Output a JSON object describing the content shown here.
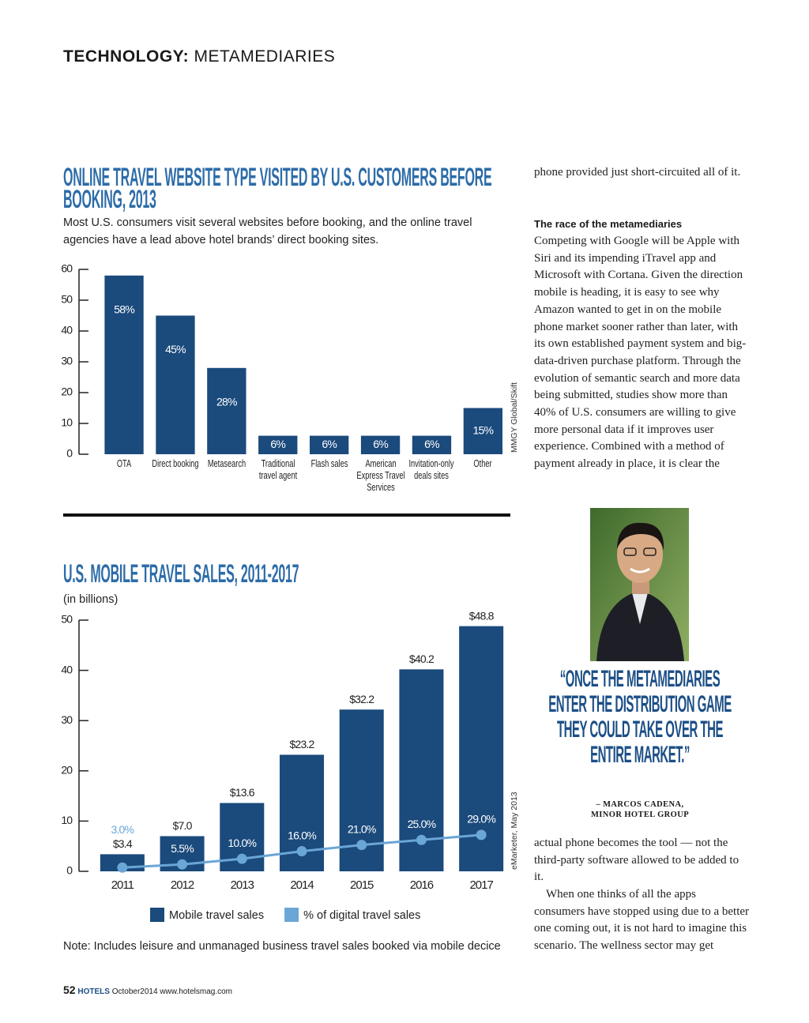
{
  "header": {
    "section": "TECHNOLOGY:",
    "topic": "METAMEDIARIES"
  },
  "chart_data": [
    {
      "type": "bar",
      "title": "ONLINE TRAVEL WEBSITE TYPE VISITED BY U.S. CUSTOMERS BEFORE BOOKING, 2013",
      "subtitle": "Most U.S. consumers visit several websites before booking, and the online travel agencies have a lead above hotel brands’ direct booking sites.",
      "source": "MMGY Global/Skift",
      "categories": [
        "OTA",
        "Direct booking",
        "Metasearch",
        "Traditional travel agent",
        "Flash sales",
        "American Express Travel Services",
        "Invitation-only deals sites",
        "Other"
      ],
      "values": [
        58,
        45,
        28,
        6,
        6,
        6,
        6,
        15
      ],
      "value_labels": [
        "58%",
        "45%",
        "28%",
        "6%",
        "6%",
        "6%",
        "6%",
        "15%"
      ],
      "color": "#1b4a7c",
      "ylim": [
        0,
        60
      ],
      "yticks": [
        0,
        10,
        20,
        30,
        40,
        50,
        60
      ]
    },
    {
      "type": "combo",
      "title": "U.S. MOBILE TRAVEL SALES, 2011-2017",
      "subtitle": "(in billions)",
      "note": "Note: Includes leisure and unmanaged business travel sales booked via mobile decice",
      "source": "eMarketer, May 2013",
      "categories": [
        "2011",
        "2012",
        "2013",
        "2014",
        "2015",
        "2016",
        "2017"
      ],
      "series": [
        {
          "name": "Mobile travel sales",
          "type": "bar",
          "color": "#1b4a7c",
          "values": [
            3.4,
            7.0,
            13.6,
            23.2,
            32.2,
            40.2,
            48.8
          ],
          "value_labels": [
            "$3.4",
            "$7.0",
            "$13.6",
            "$23.2",
            "$32.2",
            "$40.2",
            "$48.8"
          ]
        },
        {
          "name": "% of digital travel sales",
          "type": "line",
          "axis": "y2",
          "color": "#6aa6d6",
          "values": [
            3.0,
            5.5,
            10.0,
            16.0,
            21.0,
            25.0,
            29.0
          ],
          "value_labels": [
            "3.0%",
            "5.5%",
            "10.0%",
            "16.0%",
            "21.0%",
            "25.0%",
            "29.0%"
          ]
        }
      ],
      "ylim": [
        0,
        50
      ],
      "yticks": [
        0,
        10,
        20,
        30,
        40,
        50
      ],
      "y2lim": [
        0,
        200
      ],
      "legend": "bottom"
    }
  ],
  "article": {
    "intro": "phone provided just short-circuited all of it.",
    "heading": "The race of the metamediaries",
    "paragraphs": [
      "Competing with Google will be Apple with Siri and its impending iTravel app and Microsoft with Cortana. Given the direction mobile is heading, it is easy to see why Amazon wanted to get in on the mobile phone market sooner rather than later, with its own established payment system and big-data-driven purchase platform. Through the evolution of semantic search and more data being submitted, studies show more than 40% of U.S. consumers are willing to give more personal data if it improves user experience. Combined with a method of payment already in place, it is clear the",
      "actual phone becomes the tool — not the third-party software allowed to be added to it.",
      "When one thinks of all the apps consumers have stopped using due to a better one coming out, it is not hard to imagine this scenario. The wellness sector may get"
    ]
  },
  "quote": {
    "text": "“ONCE THE METAMEDIARIES ENTER THE DISTRIBUTION GAME THEY COULD TAKE OVER THE ENTIRE MARKET.”",
    "attribution": "– MARCOS CADENA, MINOR HOTEL GROUP"
  },
  "footer": {
    "page": "52",
    "magazine": "HOTELS",
    "issue": "October2014",
    "url": "www.hotelsmag.com"
  }
}
